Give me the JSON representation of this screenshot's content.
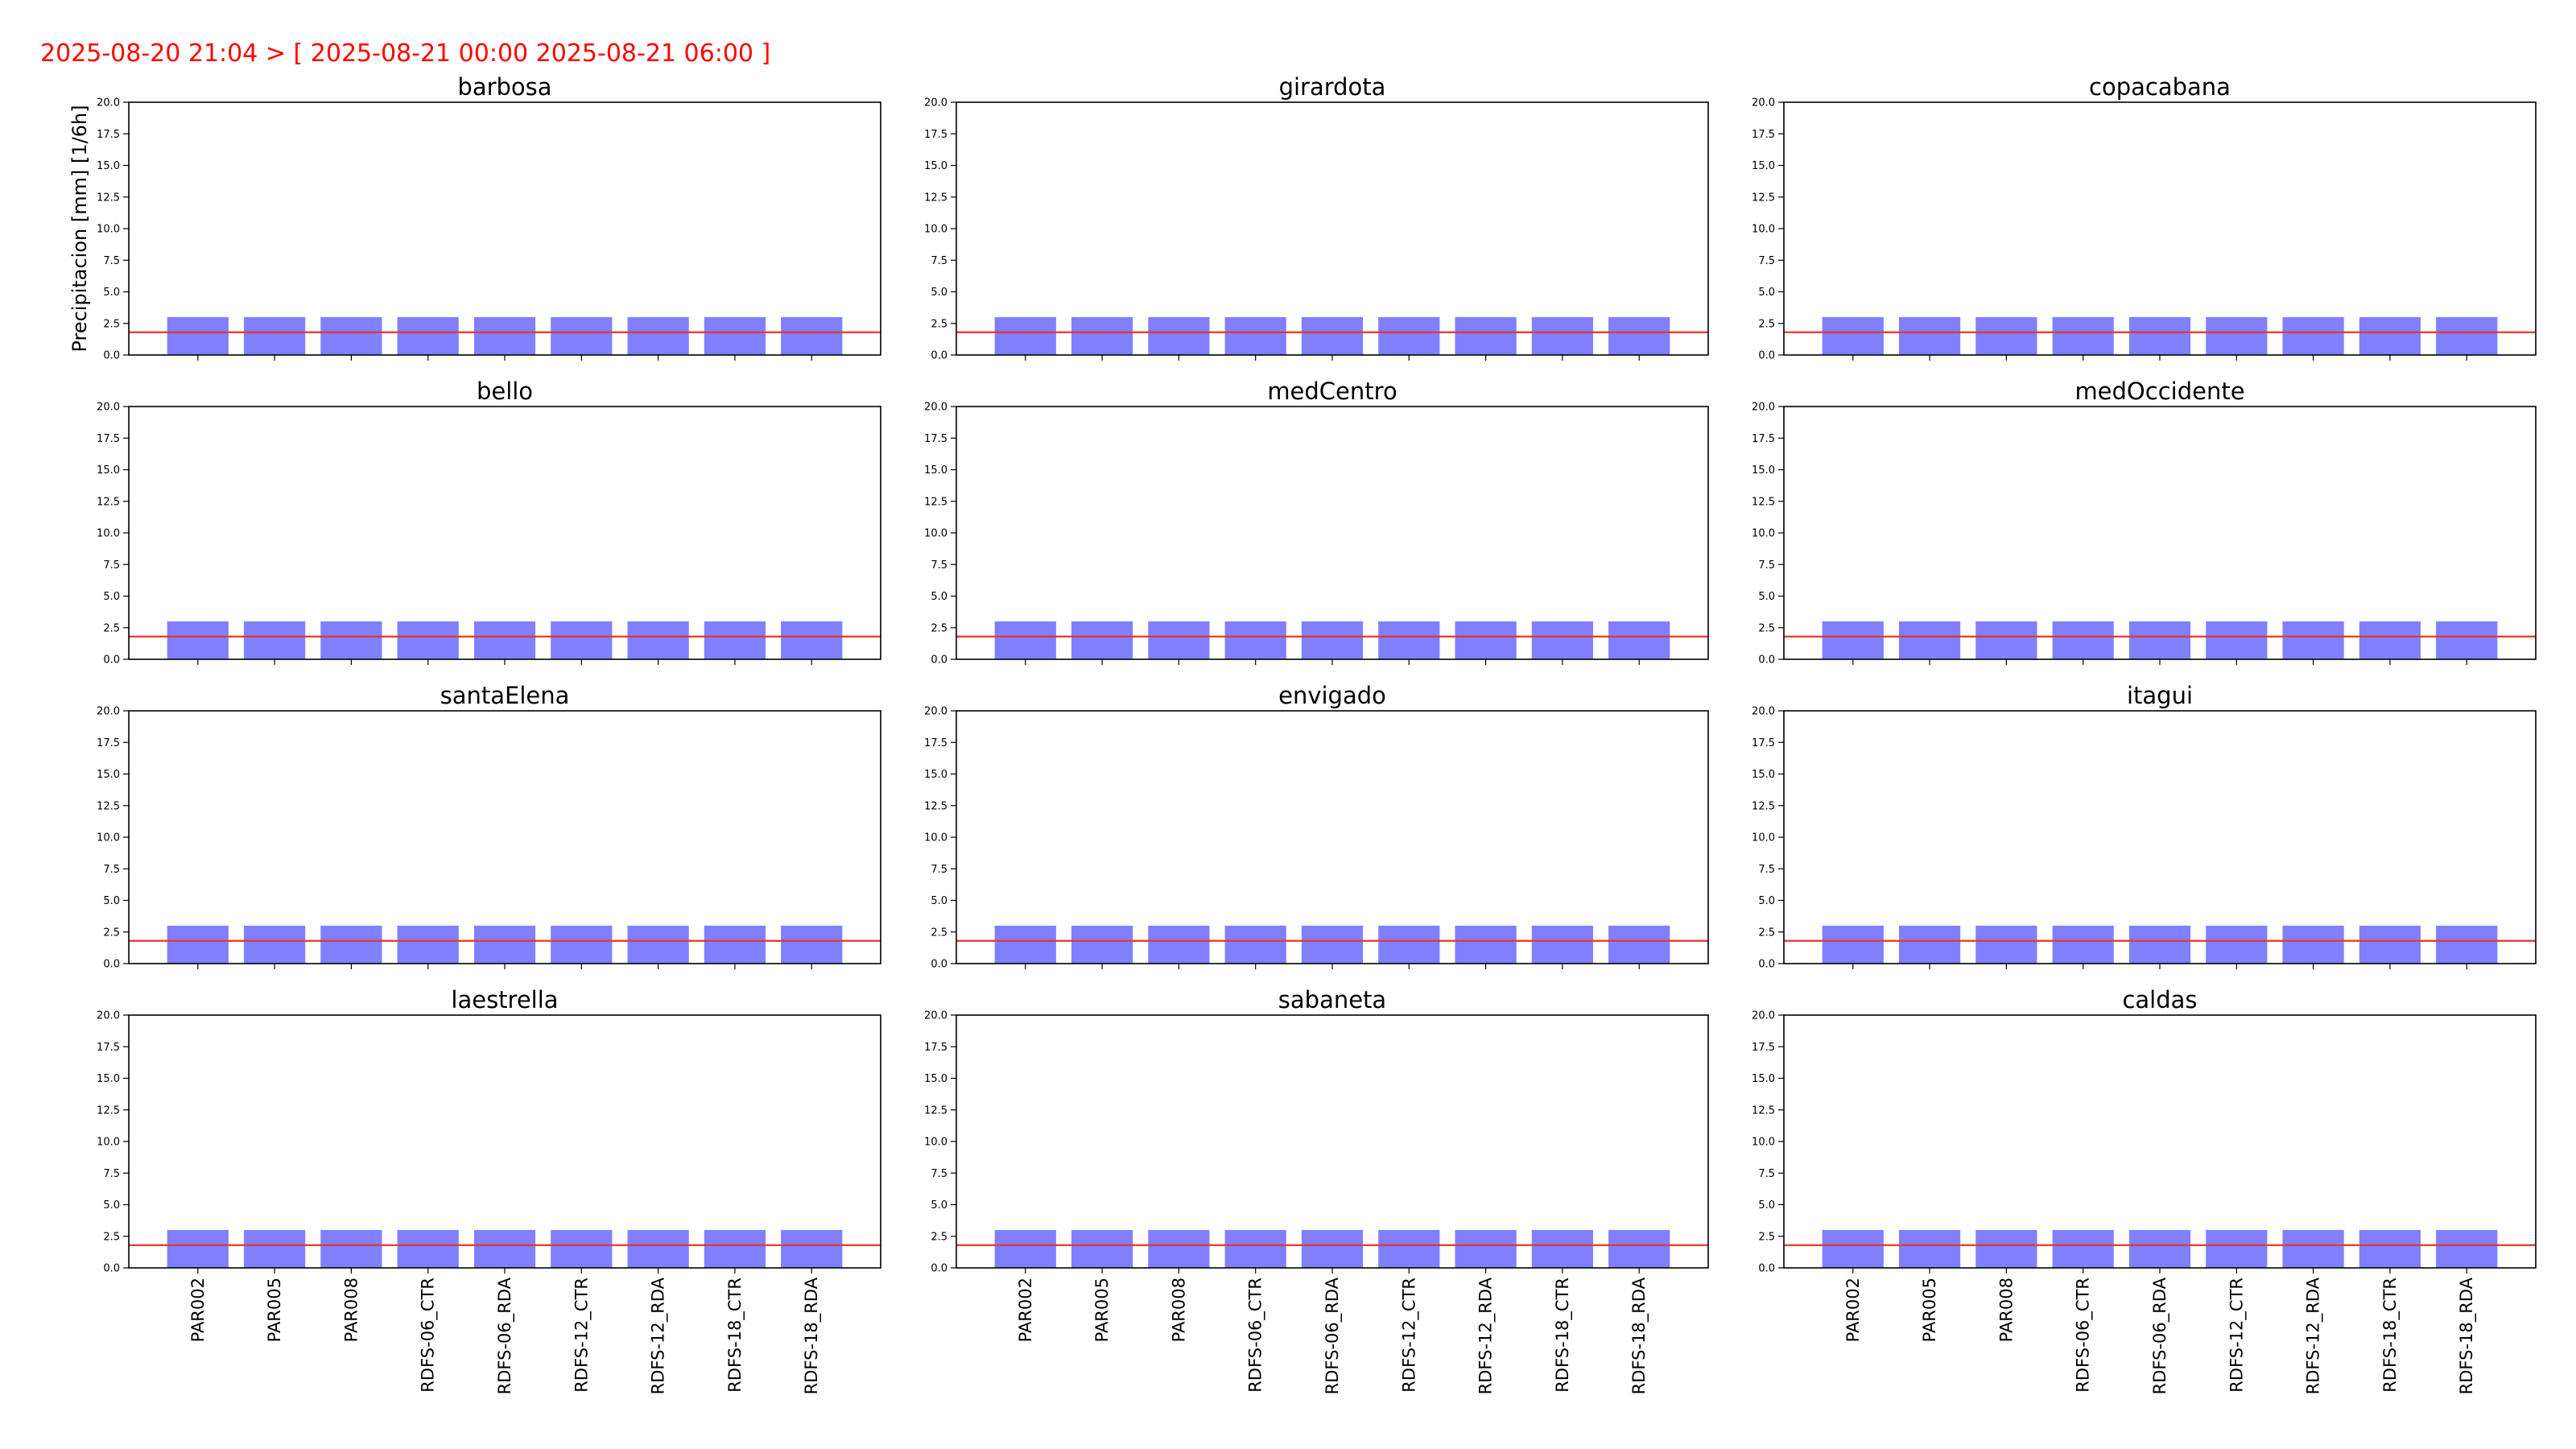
{
  "figure": {
    "suptitle": "2025-08-20 21:04 >  [ 2025-08-21 00:00  2025-08-21 06:00 ]"
  },
  "colors": {
    "bar": "#8080ff",
    "threshold": "#e8342c",
    "suptitle": "#ff0000"
  },
  "chart_data": [
    {
      "type": "bar",
      "title": "barbosa",
      "ylabel": "Precipitacion [mm] [1/6h]",
      "ylim": [
        0,
        20
      ],
      "yticks": [
        "0.0",
        "2.5",
        "5.0",
        "7.5",
        "10.0",
        "12.5",
        "15.0",
        "17.5",
        "20.0"
      ],
      "categories": [
        "PAR002",
        "PAR005",
        "PAR008",
        "RDFS-06_CTR",
        "RDFS-06_RDA",
        "RDFS-12_CTR",
        "RDFS-12_RDA",
        "RDFS-18_CTR",
        "RDFS-18_RDA"
      ],
      "values": [
        3,
        3,
        3,
        3,
        3,
        3,
        3,
        3,
        3
      ],
      "threshold": 1.8,
      "show_xticklabels": false
    },
    {
      "type": "bar",
      "title": "girardota",
      "ylabel": "",
      "ylim": [
        0,
        20
      ],
      "yticks": [
        "0.0",
        "2.5",
        "5.0",
        "7.5",
        "10.0",
        "12.5",
        "15.0",
        "17.5",
        "20.0"
      ],
      "categories": [
        "PAR002",
        "PAR005",
        "PAR008",
        "RDFS-06_CTR",
        "RDFS-06_RDA",
        "RDFS-12_CTR",
        "RDFS-12_RDA",
        "RDFS-18_CTR",
        "RDFS-18_RDA"
      ],
      "values": [
        3,
        3,
        3,
        3,
        3,
        3,
        3,
        3,
        3
      ],
      "threshold": 1.8,
      "show_xticklabels": false
    },
    {
      "type": "bar",
      "title": "copacabana",
      "ylabel": "",
      "ylim": [
        0,
        20
      ],
      "yticks": [
        "0.0",
        "2.5",
        "5.0",
        "7.5",
        "10.0",
        "12.5",
        "15.0",
        "17.5",
        "20.0"
      ],
      "categories": [
        "PAR002",
        "PAR005",
        "PAR008",
        "RDFS-06_CTR",
        "RDFS-06_RDA",
        "RDFS-12_CTR",
        "RDFS-12_RDA",
        "RDFS-18_CTR",
        "RDFS-18_RDA"
      ],
      "values": [
        3,
        3,
        3,
        3,
        3,
        3,
        3,
        3,
        3
      ],
      "threshold": 1.8,
      "show_xticklabels": false
    },
    {
      "type": "bar",
      "title": "bello",
      "ylabel": "",
      "ylim": [
        0,
        20
      ],
      "yticks": [
        "0.0",
        "2.5",
        "5.0",
        "7.5",
        "10.0",
        "12.5",
        "15.0",
        "17.5",
        "20.0"
      ],
      "categories": [
        "PAR002",
        "PAR005",
        "PAR008",
        "RDFS-06_CTR",
        "RDFS-06_RDA",
        "RDFS-12_CTR",
        "RDFS-12_RDA",
        "RDFS-18_CTR",
        "RDFS-18_RDA"
      ],
      "values": [
        3,
        3,
        3,
        3,
        3,
        3,
        3,
        3,
        3
      ],
      "threshold": 1.8,
      "show_xticklabels": false
    },
    {
      "type": "bar",
      "title": "medCentro",
      "ylabel": "",
      "ylim": [
        0,
        20
      ],
      "yticks": [
        "0.0",
        "2.5",
        "5.0",
        "7.5",
        "10.0",
        "12.5",
        "15.0",
        "17.5",
        "20.0"
      ],
      "categories": [
        "PAR002",
        "PAR005",
        "PAR008",
        "RDFS-06_CTR",
        "RDFS-06_RDA",
        "RDFS-12_CTR",
        "RDFS-12_RDA",
        "RDFS-18_CTR",
        "RDFS-18_RDA"
      ],
      "values": [
        3,
        3,
        3,
        3,
        3,
        3,
        3,
        3,
        3
      ],
      "threshold": 1.8,
      "show_xticklabels": false
    },
    {
      "type": "bar",
      "title": "medOccidente",
      "ylabel": "",
      "ylim": [
        0,
        20
      ],
      "yticks": [
        "0.0",
        "2.5",
        "5.0",
        "7.5",
        "10.0",
        "12.5",
        "15.0",
        "17.5",
        "20.0"
      ],
      "categories": [
        "PAR002",
        "PAR005",
        "PAR008",
        "RDFS-06_CTR",
        "RDFS-06_RDA",
        "RDFS-12_CTR",
        "RDFS-12_RDA",
        "RDFS-18_CTR",
        "RDFS-18_RDA"
      ],
      "values": [
        3,
        3,
        3,
        3,
        3,
        3,
        3,
        3,
        3
      ],
      "threshold": 1.8,
      "show_xticklabels": false
    },
    {
      "type": "bar",
      "title": "santaElena",
      "ylabel": "",
      "ylim": [
        0,
        20
      ],
      "yticks": [
        "0.0",
        "2.5",
        "5.0",
        "7.5",
        "10.0",
        "12.5",
        "15.0",
        "17.5",
        "20.0"
      ],
      "categories": [
        "PAR002",
        "PAR005",
        "PAR008",
        "RDFS-06_CTR",
        "RDFS-06_RDA",
        "RDFS-12_CTR",
        "RDFS-12_RDA",
        "RDFS-18_CTR",
        "RDFS-18_RDA"
      ],
      "values": [
        3,
        3,
        3,
        3,
        3,
        3,
        3,
        3,
        3
      ],
      "threshold": 1.8,
      "show_xticklabels": false
    },
    {
      "type": "bar",
      "title": "envigado",
      "ylabel": "",
      "ylim": [
        0,
        20
      ],
      "yticks": [
        "0.0",
        "2.5",
        "5.0",
        "7.5",
        "10.0",
        "12.5",
        "15.0",
        "17.5",
        "20.0"
      ],
      "categories": [
        "PAR002",
        "PAR005",
        "PAR008",
        "RDFS-06_CTR",
        "RDFS-06_RDA",
        "RDFS-12_CTR",
        "RDFS-12_RDA",
        "RDFS-18_CTR",
        "RDFS-18_RDA"
      ],
      "values": [
        3,
        3,
        3,
        3,
        3,
        3,
        3,
        3,
        3
      ],
      "threshold": 1.8,
      "show_xticklabels": false
    },
    {
      "type": "bar",
      "title": "itagui",
      "ylabel": "",
      "ylim": [
        0,
        20
      ],
      "yticks": [
        "0.0",
        "2.5",
        "5.0",
        "7.5",
        "10.0",
        "12.5",
        "15.0",
        "17.5",
        "20.0"
      ],
      "categories": [
        "PAR002",
        "PAR005",
        "PAR008",
        "RDFS-06_CTR",
        "RDFS-06_RDA",
        "RDFS-12_CTR",
        "RDFS-12_RDA",
        "RDFS-18_CTR",
        "RDFS-18_RDA"
      ],
      "values": [
        3,
        3,
        3,
        3,
        3,
        3,
        3,
        3,
        3
      ],
      "threshold": 1.8,
      "show_xticklabels": false
    },
    {
      "type": "bar",
      "title": "laestrella",
      "ylabel": "",
      "ylim": [
        0,
        20
      ],
      "yticks": [
        "0.0",
        "2.5",
        "5.0",
        "7.5",
        "10.0",
        "12.5",
        "15.0",
        "17.5",
        "20.0"
      ],
      "categories": [
        "PAR002",
        "PAR005",
        "PAR008",
        "RDFS-06_CTR",
        "RDFS-06_RDA",
        "RDFS-12_CTR",
        "RDFS-12_RDA",
        "RDFS-18_CTR",
        "RDFS-18_RDA"
      ],
      "values": [
        3,
        3,
        3,
        3,
        3,
        3,
        3,
        3,
        3
      ],
      "threshold": 1.8,
      "show_xticklabels": true
    },
    {
      "type": "bar",
      "title": "sabaneta",
      "ylabel": "",
      "ylim": [
        0,
        20
      ],
      "yticks": [
        "0.0",
        "2.5",
        "5.0",
        "7.5",
        "10.0",
        "12.5",
        "15.0",
        "17.5",
        "20.0"
      ],
      "categories": [
        "PAR002",
        "PAR005",
        "PAR008",
        "RDFS-06_CTR",
        "RDFS-06_RDA",
        "RDFS-12_CTR",
        "RDFS-12_RDA",
        "RDFS-18_CTR",
        "RDFS-18_RDA"
      ],
      "values": [
        3,
        3,
        3,
        3,
        3,
        3,
        3,
        3,
        3
      ],
      "threshold": 1.8,
      "show_xticklabels": true
    },
    {
      "type": "bar",
      "title": "caldas",
      "ylabel": "",
      "ylim": [
        0,
        20
      ],
      "yticks": [
        "0.0",
        "2.5",
        "5.0",
        "7.5",
        "10.0",
        "12.5",
        "15.0",
        "17.5",
        "20.0"
      ],
      "categories": [
        "PAR002",
        "PAR005",
        "PAR008",
        "RDFS-06_CTR",
        "RDFS-06_RDA",
        "RDFS-12_CTR",
        "RDFS-12_RDA",
        "RDFS-18_CTR",
        "RDFS-18_RDA"
      ],
      "values": [
        3,
        3,
        3,
        3,
        3,
        3,
        3,
        3,
        3
      ],
      "threshold": 1.8,
      "show_xticklabels": true
    }
  ]
}
